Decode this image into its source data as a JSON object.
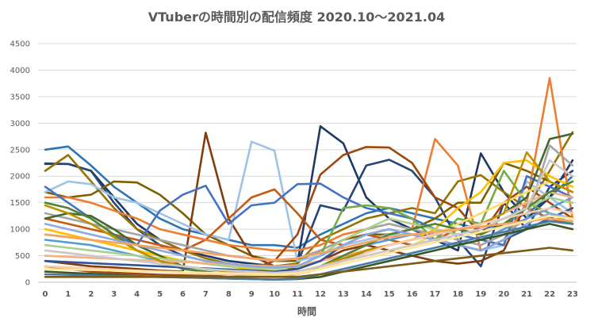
{
  "chart_data": {
    "type": "line",
    "title": "VTuberの時間別の配信頻度  2020.10～2021.04",
    "xlabel": "時間",
    "ylabel": "",
    "x": [
      0,
      1,
      2,
      3,
      4,
      5,
      6,
      7,
      8,
      9,
      10,
      11,
      12,
      13,
      14,
      15,
      16,
      17,
      18,
      19,
      20,
      21,
      22,
      23
    ],
    "ylim": [
      0,
      4500
    ],
    "yticks": [
      0,
      500,
      1000,
      1500,
      2000,
      2500,
      3000,
      3500,
      4000,
      4500
    ],
    "grid": true,
    "legend": "none",
    "series": [
      {
        "color": "#2e75b6",
        "values": [
          2500,
          2560,
          2200,
          1800,
          1500,
          1200,
          1000,
          900,
          800,
          700,
          700,
          650,
          900,
          1100,
          1300,
          1400,
          1300,
          1200,
          1100,
          1000,
          1100,
          1300,
          1600,
          2000
        ]
      },
      {
        "color": "#1f3864",
        "values": [
          2240,
          2230,
          2100,
          1600,
          1100,
          800,
          600,
          500,
          400,
          350,
          300,
          350,
          2940,
          2620,
          1600,
          1200,
          1000,
          800,
          600,
          2430,
          1700,
          1200,
          1600,
          2300
        ]
      },
      {
        "color": "#264478",
        "values": [
          2230,
          2230,
          2100,
          1500,
          1000,
          700,
          500,
          400,
          350,
          300,
          300,
          350,
          1450,
          1350,
          2200,
          2310,
          2100,
          1600,
          800,
          300,
          1500,
          1000,
          1800,
          2100
        ]
      },
      {
        "color": "#997300",
        "values": [
          2100,
          2400,
          1900,
          1400,
          1000,
          800,
          600,
          450,
          350,
          300,
          300,
          350,
          800,
          1000,
          1200,
          1300,
          1400,
          1300,
          1900,
          2020,
          1700,
          1400,
          2100,
          2830
        ]
      },
      {
        "color": "#7f6000",
        "values": [
          1700,
          1600,
          1650,
          1900,
          1880,
          1650,
          1300,
          900,
          700,
          500,
          400,
          400,
          600,
          800,
          900,
          900,
          1000,
          1200,
          1500,
          1500,
          2250,
          2100,
          1900,
          1700
        ]
      },
      {
        "color": "#843c0c",
        "values": [
          400,
          350,
          300,
          280,
          250,
          220,
          200,
          2820,
          1200,
          500,
          300,
          250,
          400,
          600,
          700,
          600,
          500,
          400,
          350,
          400,
          600,
          1500,
          1300,
          1100
        ]
      },
      {
        "color": "#9dc3e6",
        "values": [
          1700,
          1900,
          1850,
          1600,
          1500,
          1300,
          1100,
          900,
          800,
          2650,
          2480,
          400,
          500,
          700,
          800,
          900,
          900,
          800,
          700,
          600,
          700,
          1900,
          1600,
          1300
        ]
      },
      {
        "color": "#c55a11",
        "values": [
          1200,
          1100,
          1000,
          900,
          800,
          700,
          600,
          800,
          1200,
          1600,
          1750,
          1300,
          800,
          700,
          900,
          800,
          700,
          800,
          1000,
          900,
          1100,
          1400,
          1200,
          1100
        ]
      },
      {
        "color": "#ed7d31",
        "values": [
          1600,
          1600,
          1500,
          1350,
          1200,
          1000,
          900,
          800,
          700,
          650,
          600,
          600,
          700,
          900,
          1000,
          1100,
          1000,
          2700,
          2200,
          600,
          800,
          1500,
          3850,
          1200
        ]
      },
      {
        "color": "#9e480e",
        "values": [
          300,
          250,
          200,
          180,
          160,
          140,
          130,
          120,
          150,
          250,
          400,
          900,
          2030,
          2400,
          2550,
          2540,
          2250,
          1600,
          1400,
          900,
          1500,
          1800,
          1500,
          1200
        ]
      },
      {
        "color": "#4472c4",
        "values": [
          1800,
          1500,
          1200,
          900,
          700,
          1350,
          1650,
          1820,
          1100,
          1450,
          1500,
          1850,
          1860,
          1600,
          1400,
          1300,
          1200,
          1000,
          900,
          800,
          700,
          2000,
          1800,
          1600
        ]
      },
      {
        "color": "#a5a5a5",
        "values": [
          1300,
          1200,
          1100,
          1000,
          900,
          800,
          700,
          600,
          500,
          450,
          400,
          450,
          600,
          800,
          1000,
          1100,
          1000,
          900,
          800,
          700,
          900,
          1200,
          2580,
          2200
        ]
      },
      {
        "color": "#70ad47",
        "values": [
          900,
          850,
          800,
          700,
          600,
          500,
          400,
          350,
          300,
          250,
          250,
          300,
          500,
          1400,
          1450,
          1400,
          1200,
          800,
          1200,
          1100,
          2100,
          1500,
          1300,
          1100
        ]
      },
      {
        "color": "#ffc000",
        "values": [
          1000,
          900,
          800,
          700,
          600,
          500,
          400,
          350,
          300,
          250,
          250,
          300,
          400,
          500,
          600,
          700,
          800,
          1000,
          1400,
          1700,
          2250,
          2300,
          2000,
          1800
        ]
      },
      {
        "color": "#43682b",
        "values": [
          1200,
          1300,
          1250,
          1000,
          700,
          500,
          300,
          250,
          200,
          180,
          150,
          200,
          300,
          400,
          600,
          700,
          800,
          900,
          1000,
          1100,
          1300,
          1600,
          2700,
          2800
        ]
      },
      {
        "color": "#5b9bd5",
        "values": [
          800,
          750,
          700,
          600,
          500,
          400,
          300,
          250,
          200,
          180,
          150,
          200,
          300,
          500,
          700,
          800,
          900,
          800,
          700,
          800,
          1000,
          1200,
          1400,
          1600
        ]
      },
      {
        "color": "#a9d18e",
        "values": [
          700,
          650,
          600,
          550,
          500,
          450,
          400,
          350,
          300,
          280,
          250,
          300,
          500,
          800,
          1000,
          1200,
          1100,
          1000,
          900,
          1000,
          1200,
          1400,
          1600,
          1500
        ]
      },
      {
        "color": "#ffd966",
        "values": [
          600,
          550,
          500,
          450,
          400,
          350,
          300,
          250,
          200,
          180,
          160,
          200,
          300,
          400,
          500,
          600,
          700,
          900,
          1100,
          1300,
          1500,
          1700,
          1900,
          1700
        ]
      },
      {
        "color": "#f4b183",
        "values": [
          500,
          480,
          460,
          440,
          420,
          400,
          380,
          360,
          340,
          320,
          300,
          320,
          400,
          500,
          600,
          700,
          800,
          900,
          1000,
          1100,
          1300,
          1500,
          1700,
          1600
        ]
      },
      {
        "color": "#548235",
        "values": [
          1500,
          1400,
          1200,
          900,
          600,
          400,
          250,
          200,
          150,
          120,
          100,
          150,
          300,
          500,
          700,
          900,
          1000,
          1100,
          1000,
          900,
          1100,
          1400,
          1700,
          1900
        ]
      },
      {
        "color": "#bf9000",
        "values": [
          1450,
          1300,
          1100,
          850,
          600,
          400,
          300,
          250,
          200,
          150,
          130,
          180,
          300,
          450,
          600,
          700,
          800,
          900,
          1000,
          1100,
          1300,
          2450,
          1900,
          1700
        ]
      },
      {
        "color": "#2f5597",
        "values": [
          400,
          380,
          360,
          340,
          320,
          300,
          280,
          260,
          240,
          220,
          200,
          250,
          400,
          700,
          900,
          1000,
          900,
          800,
          700,
          600,
          800,
          1000,
          1200,
          1400
        ]
      },
      {
        "color": "#8faadc",
        "values": [
          1100,
          1000,
          900,
          800,
          700,
          600,
          500,
          400,
          350,
          300,
          280,
          300,
          500,
          700,
          900,
          1000,
          900,
          800,
          700,
          600,
          800,
          1100,
          1300,
          1200
        ]
      },
      {
        "color": "#f8cbad",
        "values": [
          300,
          280,
          260,
          240,
          220,
          200,
          180,
          160,
          150,
          140,
          130,
          150,
          250,
          400,
          550,
          700,
          800,
          900,
          1000,
          1100,
          1200,
          1300,
          1400,
          1300
        ]
      },
      {
        "color": "#c9c9c9",
        "values": [
          600,
          550,
          500,
          450,
          400,
          350,
          300,
          250,
          220,
          200,
          180,
          200,
          300,
          400,
          500,
          600,
          700,
          800,
          900,
          1000,
          1200,
          1400,
          2300,
          2000
        ]
      },
      {
        "color": "#385723",
        "values": [
          200,
          180,
          160,
          140,
          120,
          100,
          90,
          80,
          70,
          60,
          50,
          60,
          100,
          200,
          300,
          400,
          500,
          600,
          700,
          800,
          900,
          1000,
          1100,
          1000
        ]
      },
      {
        "color": "#f4a460",
        "values": [
          900,
          850,
          800,
          750,
          700,
          650,
          600,
          550,
          500,
          450,
          420,
          450,
          550,
          650,
          750,
          850,
          900,
          950,
          1000,
          1050,
          1100,
          1150,
          1200,
          1150
        ]
      },
      {
        "color": "#ffe699",
        "values": [
          250,
          240,
          230,
          220,
          210,
          200,
          190,
          180,
          170,
          160,
          150,
          170,
          250,
          350,
          450,
          550,
          650,
          750,
          850,
          950,
          1050,
          1150,
          1250,
          1200
        ]
      },
      {
        "color": "#4a7aa8",
        "values": [
          150,
          140,
          130,
          120,
          110,
          100,
          90,
          80,
          70,
          60,
          50,
          70,
          150,
          250,
          350,
          450,
          550,
          650,
          750,
          850,
          950,
          1050,
          1150,
          1100
        ]
      },
      {
        "color": "#7b5c1a",
        "values": [
          100,
          100,
          100,
          100,
          100,
          100,
          100,
          100,
          100,
          100,
          100,
          100,
          150,
          200,
          250,
          300,
          350,
          400,
          450,
          500,
          550,
          600,
          650,
          600
        ]
      }
    ]
  }
}
